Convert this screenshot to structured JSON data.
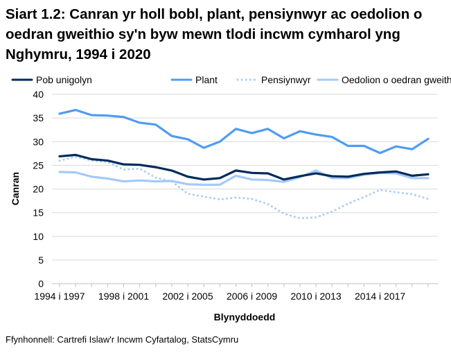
{
  "title": "Siart 1.2: Canran yr holl bobl, plant, pensiynwyr ac oedolion o oedran gweithio sy'n byw mewn tlodi incwm cymharol yng Nghymru, 1994 i 2020",
  "source": "Ffynhonnell: Cartrefi Islaw'r Incwm Cyfartalog, StatsCymru",
  "chart_data": {
    "type": "line",
    "xlabel": "Blynyddoedd",
    "ylabel": "Canran",
    "ylim": [
      0,
      40
    ],
    "yticks": [
      "0",
      "5",
      "10",
      "15",
      "20",
      "25",
      "30",
      "35",
      "40"
    ],
    "grid": true,
    "legend": "top",
    "x_tick_labels": [
      "1994 i 1997",
      "1998 i 2001",
      "2002 i 2005",
      "2006 i 2009",
      "2010 i 2013",
      "2014 i 2017"
    ],
    "n_points": 24,
    "series": [
      {
        "name": "Pob unigolyn",
        "color": "#002a5c",
        "style": "solid",
        "values": [
          26.9,
          27.2,
          26.3,
          26.0,
          25.2,
          25.1,
          24.6,
          23.9,
          22.6,
          22.0,
          22.3,
          23.9,
          23.4,
          23.3,
          22.0,
          22.7,
          23.3,
          22.7,
          22.6,
          23.2,
          23.5,
          23.7,
          22.8,
          23.1
        ]
      },
      {
        "name": "Plant",
        "color": "#4f9bf5",
        "style": "solid",
        "values": [
          35.9,
          36.7,
          35.6,
          35.5,
          35.2,
          34.0,
          33.6,
          31.2,
          30.5,
          28.7,
          30.0,
          32.7,
          31.8,
          32.7,
          30.7,
          32.2,
          31.5,
          31.0,
          29.1,
          29.1,
          27.6,
          29.0,
          28.4,
          30.6
        ]
      },
      {
        "name": "Pensiynwyr",
        "color": "#a8cdf8",
        "style": "dotted",
        "values": [
          26.0,
          26.8,
          26.0,
          25.7,
          24.1,
          24.3,
          22.4,
          21.6,
          19.0,
          18.4,
          17.8,
          18.2,
          17.9,
          16.8,
          14.8,
          13.8,
          14.0,
          15.2,
          16.9,
          18.3,
          19.8,
          19.3,
          18.9,
          17.9
        ]
      },
      {
        "name": "Oedolion o oedran gweithio",
        "color": "#a3c9f7",
        "style": "solid",
        "values": [
          23.6,
          23.5,
          22.6,
          22.2,
          21.6,
          21.8,
          21.6,
          21.7,
          21.0,
          20.9,
          20.9,
          22.8,
          22.0,
          21.9,
          21.5,
          22.5,
          23.9,
          22.3,
          22.3,
          23.0,
          23.4,
          23.3,
          22.3,
          22.3
        ]
      }
    ]
  }
}
